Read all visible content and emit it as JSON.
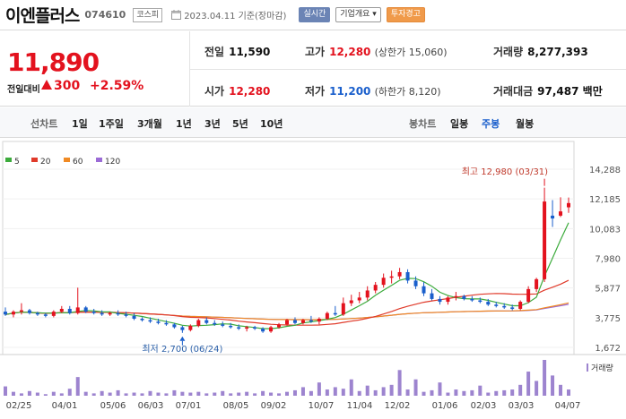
{
  "header": {
    "stock_name": "이엔플러스",
    "stock_code": "074610",
    "market": "코스피",
    "date_text": "2023.04.11 기준(장마감)",
    "buttons": [
      "실시간",
      "기업개요",
      "투자경고"
    ]
  },
  "summary": {
    "price": "11,890",
    "change_label": "전일대비",
    "change": "300",
    "change_pct": "+2.59%",
    "prev_close_label": "전일",
    "prev_close": "11,590",
    "open_label": "시가",
    "open": "12,280",
    "high_label": "고가",
    "high": "12,280",
    "upper_limit": "(상한가 15,060)",
    "low_label": "저가",
    "low": "11,200",
    "lower_limit": "(하한가 8,120)",
    "volume_label": "거래량",
    "volume": "8,277,393",
    "amount_label": "거래대금",
    "amount": "97,487 백만"
  },
  "periods": {
    "line_label": "선차트",
    "line_items": [
      "1일",
      "1주일",
      "3개월",
      "1년",
      "3년",
      "5년",
      "10년"
    ],
    "candle_label": "봉차트",
    "candle_items": [
      "일봉",
      "주봉",
      "월봉"
    ],
    "active_candle": "주봉"
  },
  "colors": {
    "up": "#e3121e",
    "down": "#1a5fcc",
    "ma5": "#3cab3c",
    "ma20": "#e03a2a",
    "ma60": "#f08a24",
    "ma120": "#9b6bd6",
    "volume": "#9d84cf"
  },
  "chart_data": {
    "type": "candlestick",
    "legend": [
      "5",
      "20",
      "60",
      "120"
    ],
    "y_ticks": [
      "14,288",
      "12,185",
      "10,083",
      "7,980",
      "5,877",
      "3,775",
      "1,672"
    ],
    "ylim": [
      1672,
      14288
    ],
    "x_labels": [
      "02/25",
      "04/01",
      "05/06",
      "06/03",
      "07/01",
      "08/05",
      "09/02",
      "10/07",
      "11/04",
      "12/02",
      "01/06",
      "02/03",
      "03/03",
      "04/07"
    ],
    "high_annotation": "최고 12,980 (03/31)",
    "low_annotation": "최저 2,700 (06/24)",
    "volume_label": "거래량",
    "candles": [
      [
        4200,
        4500,
        3900,
        4000
      ],
      [
        4000,
        4300,
        3800,
        4200
      ],
      [
        4200,
        4800,
        4000,
        4300
      ],
      [
        4300,
        4400,
        4000,
        4100
      ],
      [
        4100,
        4200,
        3900,
        4000
      ],
      [
        4000,
        4100,
        3800,
        3900
      ],
      [
        3900,
        4300,
        3800,
        4200
      ],
      [
        4200,
        4600,
        4100,
        4400
      ],
      [
        4400,
        4600,
        4000,
        4100
      ],
      [
        4100,
        5900,
        4000,
        4500
      ],
      [
        4500,
        4600,
        4100,
        4200
      ],
      [
        4200,
        4400,
        4000,
        4100
      ],
      [
        4100,
        4300,
        3900,
        4000
      ],
      [
        4000,
        4200,
        3900,
        4100
      ],
      [
        4100,
        4300,
        3900,
        4000
      ],
      [
        4000,
        4200,
        3800,
        3900
      ],
      [
        3900,
        4100,
        3600,
        3700
      ],
      [
        3700,
        3800,
        3500,
        3600
      ],
      [
        3600,
        3800,
        3400,
        3500
      ],
      [
        3500,
        3700,
        3300,
        3400
      ],
      [
        3400,
        3600,
        3200,
        3300
      ],
      [
        3300,
        3400,
        3000,
        3100
      ],
      [
        3100,
        3200,
        2700,
        2900
      ],
      [
        2900,
        3300,
        2800,
        3200
      ],
      [
        3200,
        3700,
        3100,
        3600
      ],
      [
        3600,
        3800,
        3300,
        3400
      ],
      [
        3400,
        3600,
        3200,
        3300
      ],
      [
        3300,
        3500,
        3100,
        3200
      ],
      [
        3200,
        3400,
        3000,
        3100
      ],
      [
        3100,
        3300,
        2900,
        3000
      ],
      [
        3000,
        3200,
        2800,
        3100
      ],
      [
        3100,
        3200,
        2900,
        3000
      ],
      [
        3000,
        3100,
        2700,
        2800
      ],
      [
        2800,
        3200,
        2700,
        3100
      ],
      [
        3100,
        3400,
        3000,
        3300
      ],
      [
        3300,
        3700,
        3200,
        3600
      ],
      [
        3600,
        3800,
        3300,
        3400
      ],
      [
        3400,
        3700,
        3300,
        3600
      ],
      [
        3600,
        3900,
        3400,
        3500
      ],
      [
        3500,
        3800,
        3300,
        3700
      ],
      [
        3700,
        4200,
        3600,
        4100
      ],
      [
        4100,
        4600,
        3900,
        4000
      ],
      [
        4000,
        5200,
        3900,
        4800
      ],
      [
        4800,
        5400,
        4600,
        5000
      ],
      [
        5000,
        5600,
        4800,
        5200
      ],
      [
        5200,
        6000,
        5000,
        5700
      ],
      [
        5700,
        6300,
        5500,
        6100
      ],
      [
        6100,
        6900,
        5900,
        6600
      ],
      [
        6600,
        7100,
        6200,
        6700
      ],
      [
        6700,
        7300,
        6500,
        7000
      ],
      [
        7000,
        7200,
        6200,
        6400
      ],
      [
        6400,
        6700,
        5800,
        6000
      ],
      [
        6000,
        6300,
        5300,
        5500
      ],
      [
        5500,
        5800,
        5000,
        5100
      ],
      [
        5100,
        5300,
        4700,
        4900
      ],
      [
        4900,
        5300,
        4700,
        5200
      ],
      [
        5200,
        5600,
        5000,
        5300
      ],
      [
        5300,
        5400,
        5000,
        5100
      ],
      [
        5100,
        5300,
        4900,
        5000
      ],
      [
        5000,
        5200,
        4800,
        4900
      ],
      [
        4900,
        5100,
        4600,
        4700
      ],
      [
        4700,
        4900,
        4500,
        4600
      ],
      [
        4600,
        4800,
        4400,
        4500
      ],
      [
        4500,
        4700,
        4300,
        4400
      ],
      [
        4400,
        5000,
        4300,
        4900
      ],
      [
        4900,
        6000,
        4800,
        5800
      ],
      [
        5800,
        6600,
        5600,
        6500
      ],
      [
        6500,
        12980,
        6300,
        12000
      ],
      [
        11000,
        12100,
        10200,
        10800
      ],
      [
        11000,
        12300,
        10900,
        11300
      ],
      [
        11590,
        12280,
        11200,
        11890
      ]
    ],
    "volumes": [
      12,
      5,
      3,
      6,
      4,
      2,
      5,
      3,
      9,
      24,
      5,
      3,
      6,
      4,
      7,
      3,
      4,
      3,
      6,
      4,
      3,
      7,
      5,
      4,
      5,
      3,
      4,
      6,
      3,
      4,
      5,
      3,
      6,
      4,
      3,
      5,
      7,
      11,
      6,
      17,
      8,
      11,
      9,
      21,
      6,
      13,
      7,
      11,
      14,
      33,
      8,
      21,
      5,
      7,
      17,
      4,
      8,
      6,
      7,
      13,
      4,
      6,
      7,
      8,
      14,
      31,
      19,
      46,
      26,
      14,
      8
    ]
  }
}
